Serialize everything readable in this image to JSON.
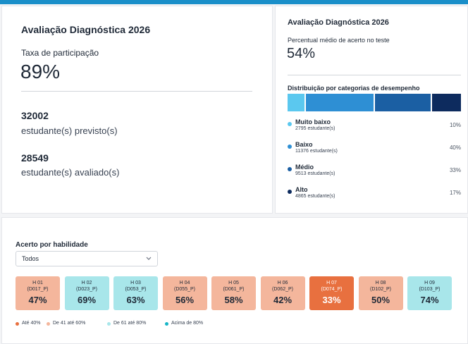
{
  "participation": {
    "title": "Avaliação Diagnóstica 2026",
    "label": "Taxa de participação",
    "rate": "89%",
    "expected": {
      "count": "32002",
      "label": "estudante(s) previsto(s)"
    },
    "evaluated": {
      "count": "28549",
      "label": "estudante(s) avaliado(s)"
    }
  },
  "performance": {
    "title": "Avaliação Diagnóstica 2026",
    "label": "Percentual médio de acerto no teste",
    "average": "54%",
    "distribution_title": "Distribuição por categorias de desempenho",
    "categories": [
      {
        "name": "Muito baixo",
        "students": "2795 estudante(s)",
        "value": 10,
        "label": "10%",
        "color": "#5bc8ef"
      },
      {
        "name": "Baixo",
        "students": "11376 estudante(s)",
        "value": 40,
        "label": "40%",
        "color": "#2e8fd4"
      },
      {
        "name": "Médio",
        "students": "9513 estudante(s)",
        "value": 33,
        "label": "33%",
        "color": "#1b5fa3"
      },
      {
        "name": "Alto",
        "students": "4865 estudante(s)",
        "value": 17,
        "label": "17%",
        "color": "#0d2b5e"
      }
    ]
  },
  "skills": {
    "title": "Acerto por habilidade",
    "filter": "Todos",
    "items": [
      {
        "code": "H 01",
        "descriptor": "(D017_P)",
        "value": "47%",
        "color": "#f4b69c"
      },
      {
        "code": "H 02",
        "descriptor": "(D023_P)",
        "value": "69%",
        "color": "#a8e6ea"
      },
      {
        "code": "H 03",
        "descriptor": "(D053_P)",
        "value": "63%",
        "color": "#a8e6ea"
      },
      {
        "code": "H 04",
        "descriptor": "(D055_P)",
        "value": "56%",
        "color": "#f4b69c"
      },
      {
        "code": "H 05",
        "descriptor": "(D061_P)",
        "value": "58%",
        "color": "#f4b69c"
      },
      {
        "code": "H 06",
        "descriptor": "(D062_P)",
        "value": "42%",
        "color": "#f4b69c"
      },
      {
        "code": "H 07",
        "descriptor": "(D074_P)",
        "value": "33%",
        "color": "#e8703f"
      },
      {
        "code": "H 08",
        "descriptor": "(D102_P)",
        "value": "50%",
        "color": "#f4b69c"
      },
      {
        "code": "H 09",
        "descriptor": "(D103_P)",
        "value": "74%",
        "color": "#a8e6ea"
      }
    ],
    "legend": [
      {
        "label": "Até 40%",
        "color": "#e8703f"
      },
      {
        "label": "De 41 até 60%",
        "color": "#f4b69c"
      },
      {
        "label": "De 61 até 80%",
        "color": "#a8e6ea"
      },
      {
        "label": "Acima de 80%",
        "color": "#17b5c7"
      }
    ]
  }
}
